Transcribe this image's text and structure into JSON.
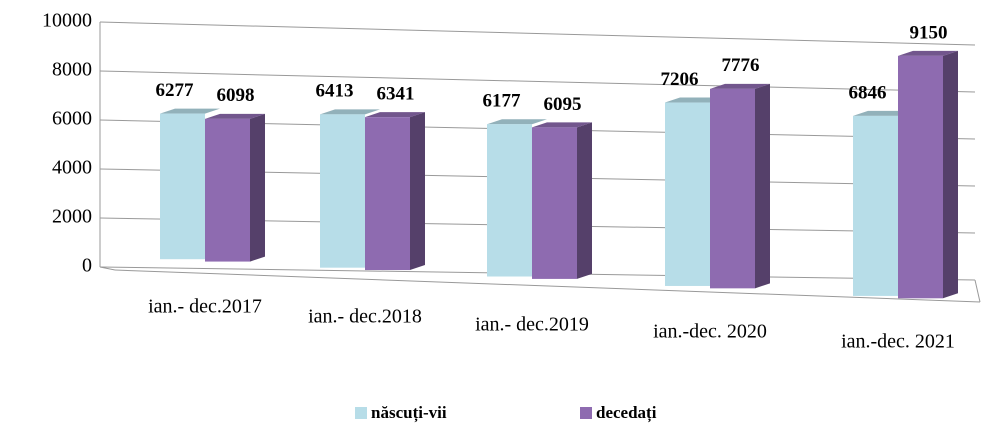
{
  "chart_data": {
    "type": "bar3d",
    "categories": [
      "ian.- dec.2017",
      "ian.- dec.2018",
      "ian.- dec.2019",
      "ian.-dec. 2020",
      "ian.-dec. 2021"
    ],
    "series": [
      {
        "name": "născuți-vii",
        "color": "#b7dde8",
        "values": [
          6277,
          6413,
          6177,
          7206,
          6846
        ]
      },
      {
        "name": "decedați",
        "color": "#8e6bb0",
        "values": [
          6098,
          6341,
          6095,
          7776,
          9150
        ]
      }
    ],
    "ylim": [
      0,
      10000
    ],
    "yticks": [
      0,
      2000,
      4000,
      6000,
      8000,
      10000
    ],
    "grid": true,
    "legend": "bottom"
  }
}
